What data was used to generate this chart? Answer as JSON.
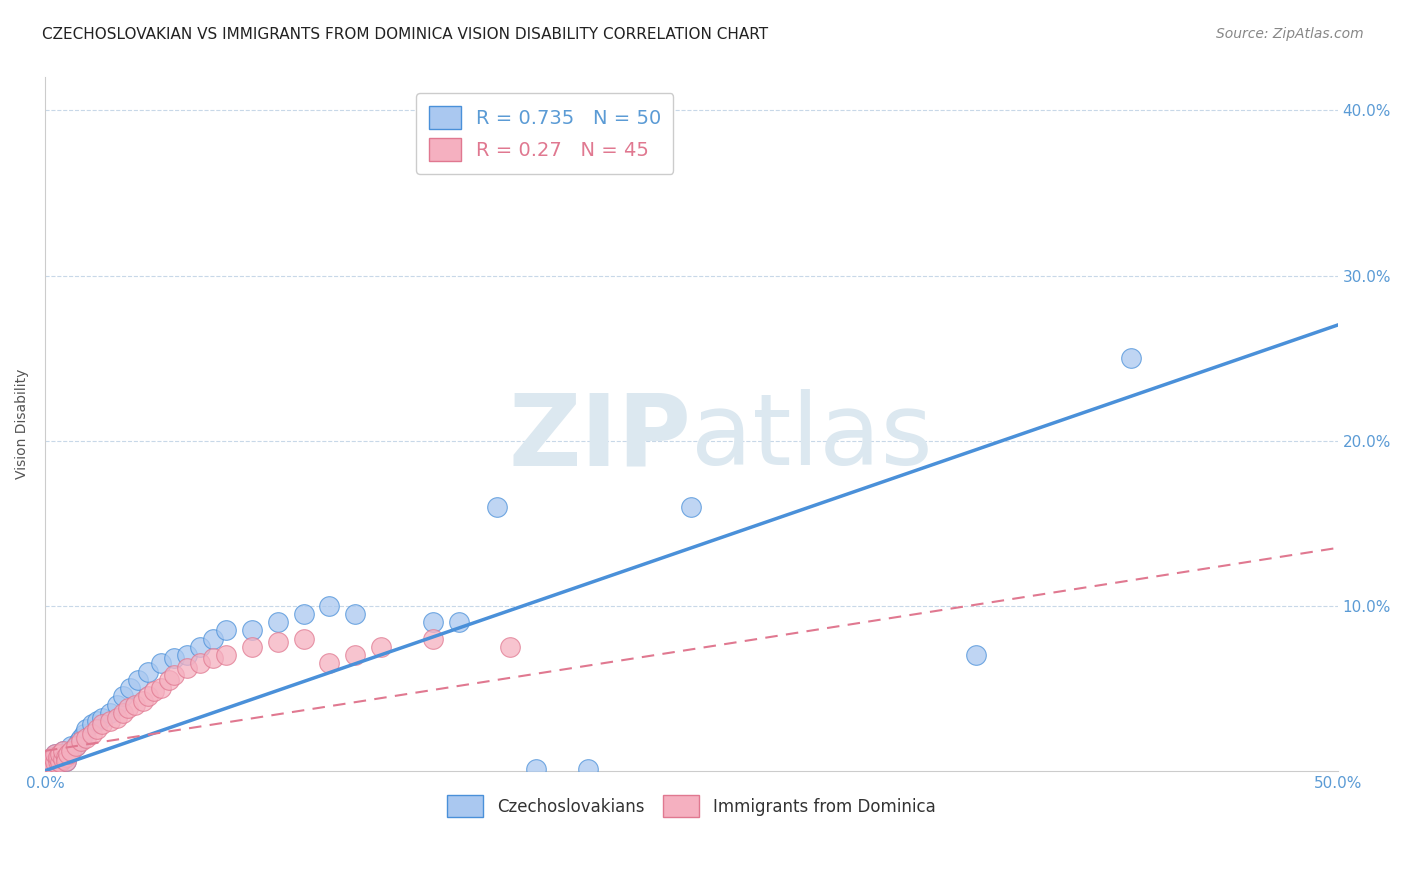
{
  "title": "CZECHOSLOVAKIAN VS IMMIGRANTS FROM DOMINICA VISION DISABILITY CORRELATION CHART",
  "source": "Source: ZipAtlas.com",
  "ylabel": "Vision Disability",
  "xlim": [
    0.0,
    0.5
  ],
  "ylim": [
    0.0,
    0.42
  ],
  "xticks": [
    0.0,
    0.1,
    0.2,
    0.3,
    0.4,
    0.5
  ],
  "yticks": [
    0.1,
    0.2,
    0.3,
    0.4
  ],
  "ytick_labels": [
    "10.0%",
    "20.0%",
    "30.0%",
    "40.0%"
  ],
  "xtick_labels": [
    "0.0%",
    "",
    "",
    "",
    "",
    "50.0%"
  ],
  "R_czech": 0.735,
  "N_czech": 50,
  "R_dominica": 0.27,
  "N_dominica": 45,
  "legend_label_czech": "Czechoslovakians",
  "legend_label_dominica": "Immigrants from Dominica",
  "scatter_color_czech": "#aac8f0",
  "scatter_color_dominica": "#f5b0c0",
  "line_color_czech": "#4a90d9",
  "line_color_dominica": "#e07890",
  "tick_color": "#5b9bd5",
  "background_color": "#ffffff",
  "grid_color": "#c8d8e8",
  "watermark_color": "#dce8f0",
  "title_fontsize": 11,
  "source_fontsize": 10,
  "axis_label_fontsize": 10,
  "tick_fontsize": 11,
  "legend_fontsize": 13,
  "czech_x": [
    0.001,
    0.002,
    0.003,
    0.003,
    0.004,
    0.004,
    0.005,
    0.005,
    0.006,
    0.006,
    0.007,
    0.007,
    0.008,
    0.008,
    0.009,
    0.01,
    0.01,
    0.012,
    0.013,
    0.014,
    0.015,
    0.016,
    0.018,
    0.02,
    0.022,
    0.025,
    0.028,
    0.03,
    0.033,
    0.036,
    0.04,
    0.045,
    0.05,
    0.055,
    0.06,
    0.065,
    0.07,
    0.08,
    0.09,
    0.1,
    0.11,
    0.12,
    0.15,
    0.16,
    0.175,
    0.19,
    0.21,
    0.25,
    0.36,
    0.42
  ],
  "czech_y": [
    0.005,
    0.006,
    0.004,
    0.008,
    0.005,
    0.01,
    0.006,
    0.008,
    0.005,
    0.01,
    0.007,
    0.012,
    0.008,
    0.006,
    0.01,
    0.012,
    0.015,
    0.015,
    0.018,
    0.02,
    0.022,
    0.025,
    0.028,
    0.03,
    0.032,
    0.035,
    0.04,
    0.045,
    0.05,
    0.055,
    0.06,
    0.065,
    0.068,
    0.07,
    0.075,
    0.08,
    0.085,
    0.085,
    0.09,
    0.095,
    0.1,
    0.095,
    0.09,
    0.09,
    0.16,
    0.001,
    0.001,
    0.16,
    0.07,
    0.25
  ],
  "dominica_x": [
    0.001,
    0.002,
    0.003,
    0.003,
    0.004,
    0.004,
    0.005,
    0.005,
    0.006,
    0.006,
    0.007,
    0.007,
    0.008,
    0.008,
    0.009,
    0.01,
    0.012,
    0.014,
    0.016,
    0.018,
    0.02,
    0.022,
    0.025,
    0.028,
    0.03,
    0.032,
    0.035,
    0.038,
    0.04,
    0.042,
    0.045,
    0.048,
    0.05,
    0.055,
    0.06,
    0.065,
    0.07,
    0.08,
    0.09,
    0.1,
    0.11,
    0.12,
    0.13,
    0.15,
    0.18
  ],
  "dominica_y": [
    0.005,
    0.006,
    0.004,
    0.008,
    0.005,
    0.01,
    0.006,
    0.008,
    0.005,
    0.01,
    0.007,
    0.012,
    0.008,
    0.006,
    0.01,
    0.012,
    0.015,
    0.018,
    0.02,
    0.022,
    0.025,
    0.028,
    0.03,
    0.032,
    0.035,
    0.038,
    0.04,
    0.042,
    0.045,
    0.048,
    0.05,
    0.055,
    0.058,
    0.062,
    0.065,
    0.068,
    0.07,
    0.075,
    0.078,
    0.08,
    0.065,
    0.07,
    0.075,
    0.08,
    0.075
  ],
  "czech_trendline_x": [
    0.0,
    0.5
  ],
  "czech_trendline_y": [
    0.0,
    0.27
  ],
  "dominica_trendline_x": [
    0.0,
    0.5
  ],
  "dominica_trendline_y": [
    0.012,
    0.135
  ]
}
